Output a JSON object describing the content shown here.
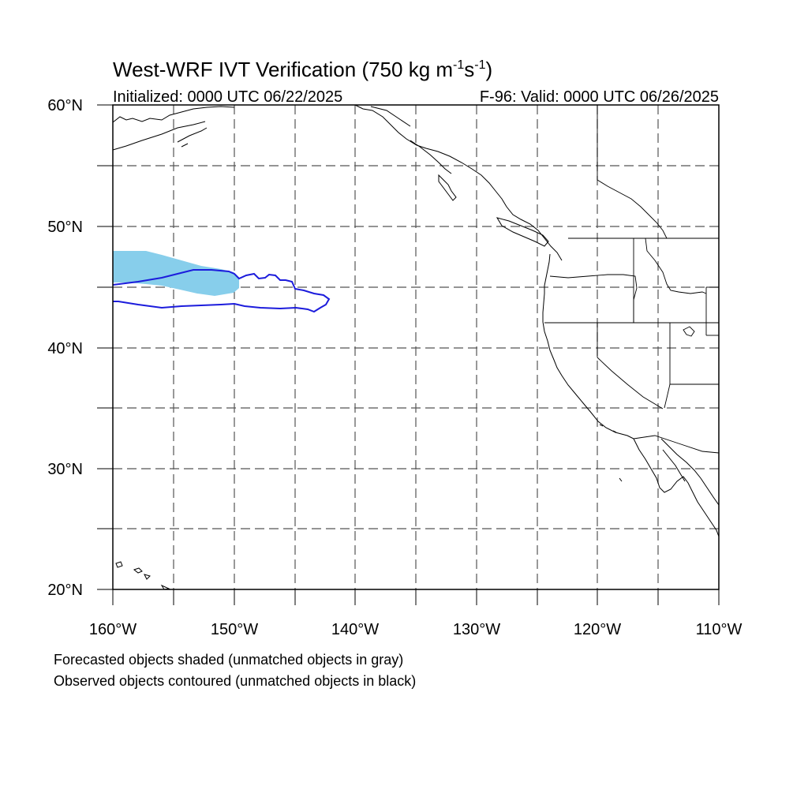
{
  "header": {
    "title_main": "West-WRF IVT Verification (750 kg m",
    "title_exp1": "-1",
    "title_mid": "s",
    "title_exp2": "-1",
    "title_close": ")",
    "initialized": "Initialized: 0000 UTC 06/22/2025",
    "valid": "F-96: Valid: 0000 UTC 06/26/2025"
  },
  "axes": {
    "lat_labels": [
      "60°N",
      "50°N",
      "40°N",
      "30°N",
      "20°N"
    ],
    "lon_labels": [
      "160°W",
      "150°W",
      "140°W",
      "130°W",
      "120°W",
      "110°W"
    ],
    "lat_range": [
      20,
      60
    ],
    "lon_range": [
      -160,
      -110
    ],
    "grid": "dashed, every 5 degrees"
  },
  "legend": {
    "line1": "Forecasted objects shaded (unmatched objects in gray)",
    "line2": "Observed objects contoured (unmatched objects in black)"
  },
  "colors": {
    "forecast_fill": "#87ceeb",
    "observed_contour": "#1c1cdc",
    "grid": "#555555",
    "coast": "#000000"
  }
}
